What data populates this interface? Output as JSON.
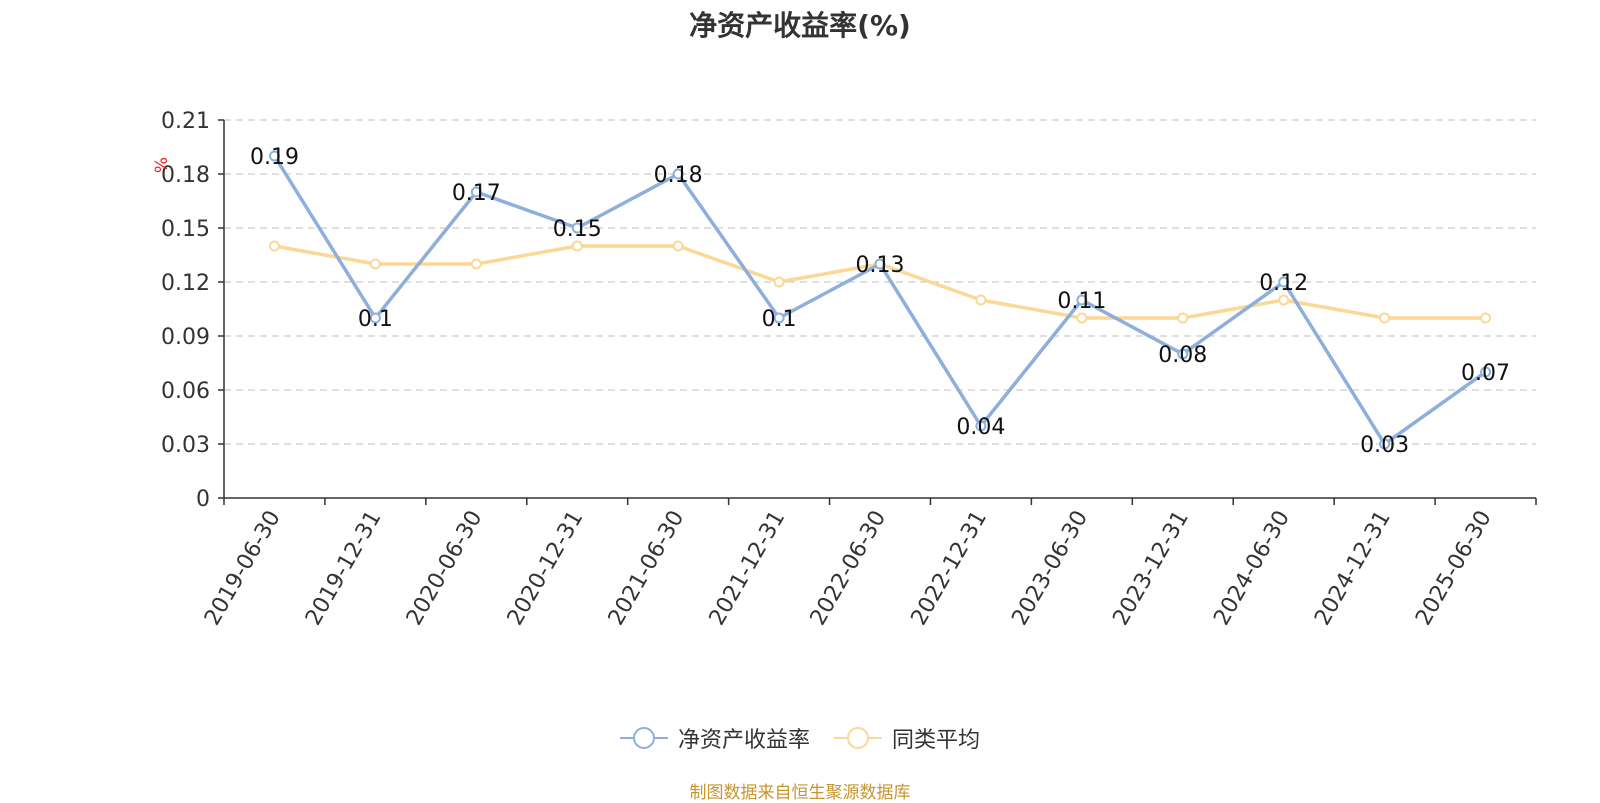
{
  "chart_data": {
    "type": "line",
    "title": "净资产收益率(%)",
    "ylabel": "%",
    "xlabel": "",
    "ylim": [
      0,
      0.21
    ],
    "y_ticks": [
      "0",
      "0.03",
      "0.06",
      "0.09",
      "0.12",
      "0.15",
      "0.18",
      "0.21"
    ],
    "categories": [
      "2019-06-30",
      "2019-12-31",
      "2020-06-30",
      "2020-12-31",
      "2021-06-30",
      "2021-12-31",
      "2022-06-30",
      "2022-12-31",
      "2023-06-30",
      "2023-12-31",
      "2024-06-30",
      "2024-12-31",
      "2025-06-30"
    ],
    "series": [
      {
        "name": "净资产收益率",
        "color": "#8eaedb",
        "show_labels": true,
        "values": [
          0.19,
          0.1,
          0.17,
          0.15,
          0.18,
          0.1,
          0.13,
          0.04,
          0.11,
          0.08,
          0.12,
          0.03,
          0.07
        ]
      },
      {
        "name": "同类平均",
        "color": "#fbd896",
        "show_labels": false,
        "values": [
          0.14,
          0.13,
          0.13,
          0.14,
          0.14,
          0.12,
          0.13,
          0.11,
          0.1,
          0.1,
          0.11,
          0.1,
          0.1
        ]
      }
    ],
    "grid": true,
    "legend_position": "bottom"
  },
  "source_note": "制图数据来自恒生聚源数据库"
}
